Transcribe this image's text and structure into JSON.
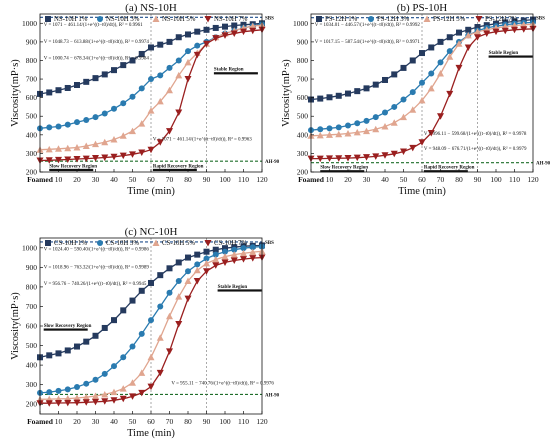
{
  "colors": {
    "s1": "#253a5e",
    "s3": "#2a7bb0",
    "s5": "#e0a58f",
    "s7": "#9a1f1f",
    "sbs": "#1f4e8c",
    "ahi": "#1f6e2a"
  },
  "chart_data": [
    {
      "type": "scatter",
      "title": "(a) NS-10H",
      "xlabel": "Time (min)",
      "ylabel": "Viscosity(mP·s)",
      "ylim": [
        200,
        1050
      ],
      "xlim": [
        0,
        120
      ],
      "x_ticks": [
        "Foamed",
        "10",
        "20",
        "30",
        "40",
        "50",
        "60",
        "70",
        "80",
        "90",
        "100",
        "110",
        "120"
      ],
      "y_ticks": [
        "200",
        "300",
        "400",
        "500",
        "600",
        "700",
        "800",
        "900",
        "1000"
      ],
      "ref_lines": [
        {
          "label": "SBS",
          "y": 1032
        },
        {
          "label": "AH-90",
          "y": 258
        }
      ],
      "vlines": [
        60,
        90
      ],
      "regions": [
        {
          "label": "Slow Recovery Region",
          "x": 5,
          "y": 225
        },
        {
          "label": "Rapid Recovery Region",
          "x": 61,
          "y": 225
        },
        {
          "label": "Stable Region",
          "x": 94,
          "y": 745
        }
      ],
      "legend": [
        "NS-10H 1%",
        "NS-10H 3%",
        "NS-10H 5%",
        "NS-10H 7%"
      ],
      "annotations": [
        {
          "text": "V = 1071 − 461.14/(1+e^((t−t0)/dt)), R² = 0.9961",
          "x": 2,
          "y": 985
        },
        {
          "text": "V = 1048.73 − 613.88/(1+e^((t−t0)/dt)), R² = 0.9974",
          "x": 2,
          "y": 895
        },
        {
          "text": "V = 1000.74 − 678.34/(1+e^((t−t0)/dt)), R² = 0.9984",
          "x": 2,
          "y": 805
        },
        {
          "text": "V = 1071 − 461.14/(1+e^((t−t0)/dt)), R² = 0.9963",
          "x": 61,
          "y": 370
        }
      ],
      "series": [
        {
          "name": "NS-10H 1%",
          "marker": "square",
          "x": [
            0,
            5,
            10,
            15,
            20,
            25,
            30,
            35,
            40,
            45,
            50,
            55,
            60,
            65,
            70,
            75,
            80,
            85,
            90,
            95,
            100,
            105,
            110,
            115,
            120
          ],
          "y": [
            620,
            628,
            640,
            652,
            668,
            685,
            705,
            725,
            748,
            775,
            800,
            835,
            870,
            885,
            900,
            925,
            940,
            955,
            965,
            975,
            982,
            988,
            992,
            995,
            1000
          ]
        },
        {
          "name": "NS-10H 3%",
          "marker": "circle",
          "x": [
            0,
            5,
            10,
            15,
            20,
            25,
            30,
            35,
            40,
            45,
            50,
            55,
            60,
            65,
            70,
            75,
            80,
            85,
            90,
            95,
            100,
            105,
            110,
            115,
            120
          ],
          "y": [
            435,
            440,
            445,
            455,
            468,
            480,
            495,
            515,
            540,
            570,
            605,
            650,
            700,
            720,
            760,
            800,
            850,
            880,
            900,
            925,
            945,
            960,
            975,
            985,
            995
          ]
        },
        {
          "name": "NS-10H 5%",
          "marker": "triangle-up",
          "x": [
            0,
            5,
            10,
            15,
            20,
            25,
            30,
            35,
            40,
            45,
            50,
            55,
            60,
            65,
            70,
            75,
            80,
            85,
            90,
            95,
            100,
            105,
            110,
            115,
            120
          ],
          "y": [
            320,
            322,
            325,
            328,
            332,
            340,
            350,
            360,
            375,
            395,
            420,
            460,
            530,
            580,
            640,
            720,
            790,
            840,
            890,
            925,
            945,
            960,
            975,
            985,
            990
          ]
        },
        {
          "name": "NS-10H 7%",
          "marker": "triangle-down",
          "x": [
            0,
            5,
            10,
            15,
            20,
            25,
            30,
            35,
            40,
            45,
            50,
            55,
            60,
            65,
            70,
            75,
            80,
            85,
            90,
            95,
            100,
            105,
            110,
            115,
            120
          ],
          "y": [
            262,
            263,
            265,
            267,
            270,
            272,
            275,
            278,
            282,
            288,
            295,
            305,
            320,
            360,
            420,
            520,
            700,
            830,
            890,
            920,
            935,
            945,
            955,
            960,
            965
          ]
        }
      ]
    },
    {
      "type": "scatter",
      "title": "(b) PS-10H",
      "xlabel": "Time (min)",
      "ylabel": "Viscosity(mP·s)",
      "ylim": [
        200,
        1050
      ],
      "xlim": [
        0,
        120
      ],
      "x_ticks": [
        "Foamed",
        "10",
        "20",
        "30",
        "40",
        "50",
        "60",
        "70",
        "80",
        "90",
        "100",
        "110",
        "120"
      ],
      "y_ticks": [
        "200",
        "300",
        "400",
        "500",
        "600",
        "700",
        "800",
        "900",
        "1000"
      ],
      "ref_lines": [
        {
          "label": "SBS",
          "y": 1030
        },
        {
          "label": "AH-90",
          "y": 250
        }
      ],
      "vlines": [
        60,
        90
      ],
      "regions": [
        {
          "label": "Slow Recovery Region",
          "x": 5,
          "y": 218
        },
        {
          "label": "Rapid Recovery Region",
          "x": 61,
          "y": 218
        },
        {
          "label": "Stable Region",
          "x": 96,
          "y": 835
        }
      ],
      "legend": [
        "PS-12H 1%",
        "PS-12H 3%",
        "PS-12H 5%",
        "PS-12H 7%"
      ],
      "annotations": [
        {
          "text": "V = 1034.01 − 446.57/(1+e^((t−t0)/dt)), R² = 0.9992",
          "x": 2,
          "y": 985
        },
        {
          "text": "V = 1017.15 − 587.54/(1+e^((t−t0)/dt)), R² = 0.9971",
          "x": 2,
          "y": 895
        },
        {
          "text": "V = 996.11 − 599.68/(1+e^((t−t0)/dt)), R² = 0.9978",
          "x": 61,
          "y": 400
        },
        {
          "text": "V = 948.09 − 676.71/(1+e^((t−t0)/dt)), R² = 0.9979",
          "x": 61,
          "y": 318
        }
      ],
      "series": [
        {
          "name": "PS-12H 1%",
          "marker": "square",
          "x": [
            0,
            5,
            10,
            15,
            20,
            25,
            30,
            35,
            40,
            45,
            50,
            55,
            60,
            65,
            70,
            75,
            80,
            85,
            90,
            95,
            100,
            105,
            110,
            115,
            120
          ],
          "y": [
            590,
            595,
            602,
            610,
            622,
            635,
            650,
            670,
            695,
            725,
            760,
            800,
            840,
            870,
            900,
            925,
            950,
            965,
            980,
            990,
            998,
            1005,
            1010,
            1015,
            1020
          ]
        },
        {
          "name": "PS-12H 3%",
          "marker": "circle",
          "x": [
            0,
            5,
            10,
            15,
            20,
            25,
            30,
            35,
            40,
            45,
            50,
            55,
            60,
            65,
            70,
            75,
            80,
            85,
            90,
            95,
            100,
            105,
            110,
            115,
            120
          ],
          "y": [
            425,
            430,
            435,
            440,
            450,
            462,
            475,
            495,
            520,
            550,
            590,
            630,
            680,
            730,
            790,
            850,
            900,
            935,
            960,
            975,
            985,
            992,
            998,
            1002,
            1005
          ]
        },
        {
          "name": "PS-12H 5%",
          "marker": "triangle-up",
          "x": [
            0,
            5,
            10,
            15,
            20,
            25,
            30,
            35,
            40,
            45,
            50,
            55,
            60,
            65,
            70,
            75,
            80,
            85,
            90,
            95,
            100,
            105,
            110,
            115,
            120
          ],
          "y": [
            395,
            397,
            400,
            403,
            407,
            413,
            420,
            430,
            445,
            465,
            495,
            535,
            585,
            650,
            730,
            820,
            890,
            935,
            955,
            965,
            975,
            982,
            988,
            992,
            995
          ]
        },
        {
          "name": "PS-12H 7%",
          "marker": "triangle-down",
          "x": [
            0,
            5,
            10,
            15,
            20,
            25,
            30,
            35,
            40,
            45,
            50,
            55,
            60,
            65,
            70,
            75,
            80,
            85,
            90,
            95,
            100,
            105,
            110,
            115,
            120
          ],
          "y": [
            272,
            272,
            273,
            274,
            275,
            277,
            280,
            284,
            290,
            298,
            310,
            330,
            360,
            410,
            500,
            620,
            760,
            870,
            925,
            945,
            955,
            960,
            965,
            968,
            970
          ]
        }
      ]
    },
    {
      "type": "scatter",
      "title": "(c) NC-10H",
      "xlabel": "Time (min)",
      "ylabel": "Viscosity(mP·s)",
      "ylim": [
        150,
        1050
      ],
      "xlim": [
        0,
        120
      ],
      "x_ticks": [
        "Foamed",
        "10",
        "20",
        "30",
        "40",
        "50",
        "60",
        "70",
        "80",
        "90",
        "100",
        "110",
        "120"
      ],
      "y_ticks": [
        "200",
        "300",
        "400",
        "500",
        "600",
        "700",
        "800",
        "900",
        "1000"
      ],
      "ref_lines": [
        {
          "label": "SBS",
          "y": 1030
        },
        {
          "label": "AH-90",
          "y": 250
        }
      ],
      "vlines": [
        60,
        90
      ],
      "regions": [
        {
          "label": "Slow Recovery Region",
          "x": 2,
          "y": 595
        },
        {
          "label": "Stable Region",
          "x": 96,
          "y": 795
        }
      ],
      "legend": [
        "CS-10H 1%",
        "CS-10H 3%",
        "CS-10H 5%",
        "CS-10H 7%"
      ],
      "annotations": [
        {
          "text": "V = 1024.40 − 590.40/(1+e^((t−t0)/dt)), R² = 0.9986",
          "x": 2,
          "y": 985
        },
        {
          "text": "V = 1018.96 − 763.32/(1+e^((t−t0)/dt)), R² = 0.9989",
          "x": 2,
          "y": 895
        },
        {
          "text": "V = 956.76 − 740.26/(1+e^((t−t0)/dt)), R² = 0.9945",
          "x": 2,
          "y": 810
        },
        {
          "text": "V = 955.11 − 740.76/(1+e^((t−t0)/dt)), R² = 0.9976",
          "x": 71,
          "y": 300
        }
      ],
      "series": [
        {
          "name": "CS-10H 1%",
          "marker": "square",
          "x": [
            0,
            5,
            10,
            15,
            20,
            25,
            30,
            35,
            40,
            45,
            50,
            55,
            60,
            65,
            70,
            75,
            80,
            85,
            90,
            95,
            100,
            105,
            110,
            115,
            120
          ],
          "y": [
            440,
            450,
            460,
            475,
            495,
            520,
            550,
            590,
            630,
            680,
            730,
            780,
            820,
            860,
            895,
            925,
            950,
            965,
            980,
            990,
            998,
            1003,
            1008,
            1010,
            1012
          ]
        },
        {
          "name": "CS-10H 3%",
          "marker": "circle",
          "x": [
            0,
            5,
            10,
            15,
            20,
            25,
            30,
            35,
            40,
            45,
            50,
            55,
            60,
            65,
            70,
            75,
            80,
            85,
            90,
            95,
            100,
            105,
            110,
            115,
            120
          ],
          "y": [
            258,
            262,
            268,
            276,
            288,
            305,
            325,
            355,
            395,
            440,
            495,
            560,
            630,
            700,
            770,
            830,
            880,
            915,
            945,
            965,
            980,
            990,
            998,
            1003,
            1006
          ]
        },
        {
          "name": "CS-10H 5%",
          "marker": "triangle-up",
          "x": [
            0,
            5,
            10,
            15,
            20,
            25,
            30,
            35,
            40,
            45,
            50,
            55,
            60,
            65,
            70,
            75,
            80,
            85,
            90,
            95,
            100,
            105,
            110,
            115,
            120
          ],
          "y": [
            225,
            226,
            227,
            229,
            232,
            236,
            242,
            250,
            262,
            280,
            310,
            360,
            440,
            540,
            650,
            750,
            830,
            885,
            920,
            940,
            955,
            965,
            972,
            978,
            982
          ]
        },
        {
          "name": "CS-10H 7%",
          "marker": "triangle-down",
          "x": [
            0,
            5,
            10,
            15,
            20,
            25,
            30,
            35,
            40,
            45,
            50,
            55,
            60,
            65,
            70,
            75,
            80,
            85,
            90,
            95,
            100,
            105,
            110,
            115,
            120
          ],
          "y": [
            205,
            205,
            206,
            207,
            208,
            210,
            212,
            215,
            220,
            228,
            240,
            258,
            290,
            360,
            470,
            610,
            740,
            830,
            880,
            910,
            925,
            935,
            942,
            947,
            950
          ]
        }
      ]
    }
  ]
}
